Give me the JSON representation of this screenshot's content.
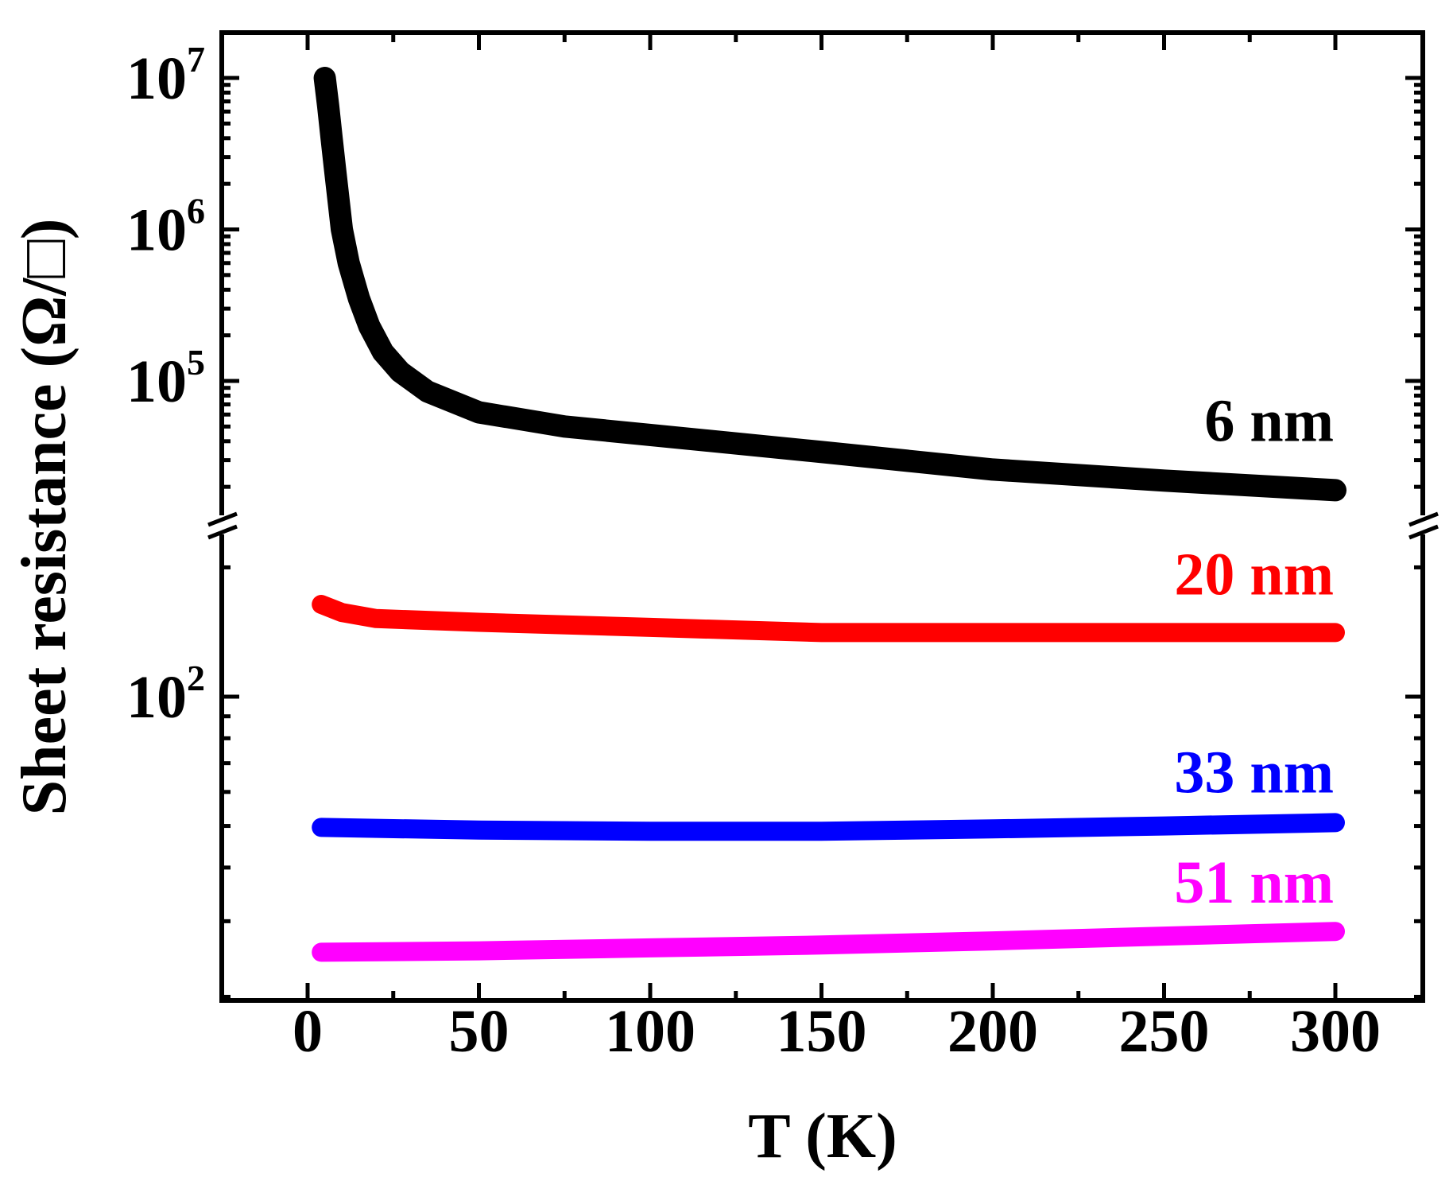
{
  "chart_data": {
    "type": "line",
    "title": "",
    "xlabel": "T (K)",
    "ylabel": "Sheet resistance (Ω/□)",
    "xlim": [
      -25,
      325
    ],
    "x_ticks": [
      0,
      50,
      100,
      150,
      200,
      250,
      300
    ],
    "x_tick_labels": [
      "0",
      "50",
      "100",
      "150",
      "200",
      "250",
      "300"
    ],
    "yscale": "log (broken axis)",
    "y_upper_ticks": [
      {
        "base": "10",
        "exp": "7",
        "value": 10000000
      },
      {
        "base": "10",
        "exp": "6",
        "value": 1000000
      },
      {
        "base": "10",
        "exp": "5",
        "value": 100000
      }
    ],
    "y_lower_ticks": [
      {
        "base": "10",
        "exp": "2",
        "value": 100
      }
    ],
    "grid": false,
    "series": [
      {
        "name": "6 nm",
        "color": "#000000",
        "segment": "upper",
        "x": [
          5,
          6,
          7,
          8,
          10,
          12,
          15,
          18,
          22,
          27,
          35,
          50,
          75,
          100,
          150,
          200,
          250,
          300
        ],
        "y": [
          10000000,
          6500000,
          4000000,
          2500000,
          1000000,
          600000,
          350000,
          230000,
          155000,
          115000,
          85000,
          62000,
          50000,
          44000,
          34000,
          26000,
          22000,
          19000
        ]
      },
      {
        "name": "20 nm",
        "color": "#ff0000",
        "segment": "lower",
        "x": [
          4,
          10,
          20,
          50,
          100,
          150,
          200,
          250,
          300
        ],
        "y": [
          164,
          157,
          152,
          149,
          145,
          141,
          141,
          141,
          141
        ]
      },
      {
        "name": "33 nm",
        "color": "#0000ff",
        "segment": "lower",
        "x": [
          4,
          50,
          100,
          150,
          200,
          250,
          300
        ],
        "y": [
          49.6,
          48.9,
          48.6,
          48.6,
          49.2,
          50.0,
          50.9
        ]
      },
      {
        "name": "51 nm",
        "color": "#ff00ff",
        "segment": "lower",
        "x": [
          4,
          50,
          100,
          150,
          200,
          250,
          300
        ],
        "y": [
          25.4,
          25.6,
          26.0,
          26.4,
          27.0,
          27.7,
          28.4
        ]
      }
    ]
  }
}
